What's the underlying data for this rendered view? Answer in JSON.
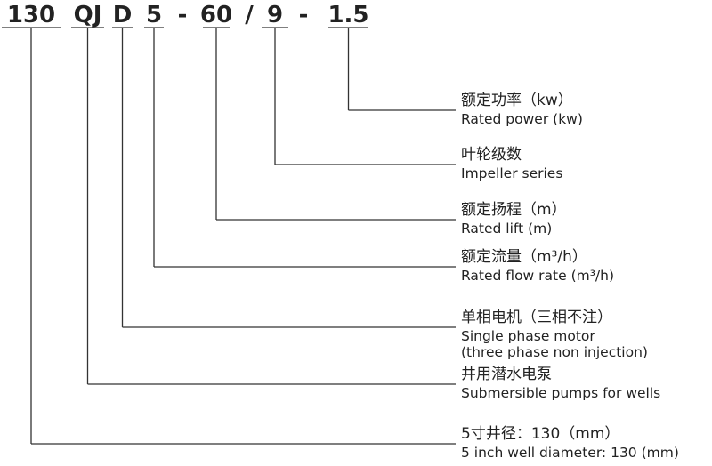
{
  "code_parts": [
    {
      "text": "130",
      "key": true
    },
    {
      "text": "QJ",
      "key": true
    },
    {
      "text": "D",
      "key": true
    },
    {
      "text": "5",
      "key": true
    },
    {
      "text": "-",
      "key": false
    },
    {
      "text": "60",
      "key": true
    },
    {
      "text": "/",
      "key": false
    },
    {
      "text": "9",
      "key": true
    },
    {
      "text": "-",
      "key": false
    },
    {
      "text": "1.5",
      "key": true
    }
  ],
  "labels": [
    {
      "code": "1.5",
      "zh": "额定功率（kw）",
      "en": [
        "Rated power (kw)"
      ]
    },
    {
      "code": "9",
      "zh": "叶轮级数",
      "en": [
        "Impeller series"
      ]
    },
    {
      "code": "60",
      "zh": "额定扬程（m）",
      "en": [
        "Rated lift (m)"
      ]
    },
    {
      "code": "5",
      "zh": "额定流量（m³/h）",
      "en": [
        "Rated flow rate (m³/h)"
      ]
    },
    {
      "code": "D",
      "zh": "单相电机（三相不注）",
      "en": [
        "Single phase motor",
        "(three phase non injection)"
      ]
    },
    {
      "code": "QJ",
      "zh": "井用潜水电泵",
      "en": [
        "Submersible pumps for wells"
      ]
    },
    {
      "code": "130",
      "zh": "5寸井径：130（mm）",
      "en": [
        "5 inch well diameter: 130 (mm)"
      ]
    }
  ],
  "colors": {
    "text": "#222222",
    "line": "#333333",
    "background": "#ffffff"
  }
}
